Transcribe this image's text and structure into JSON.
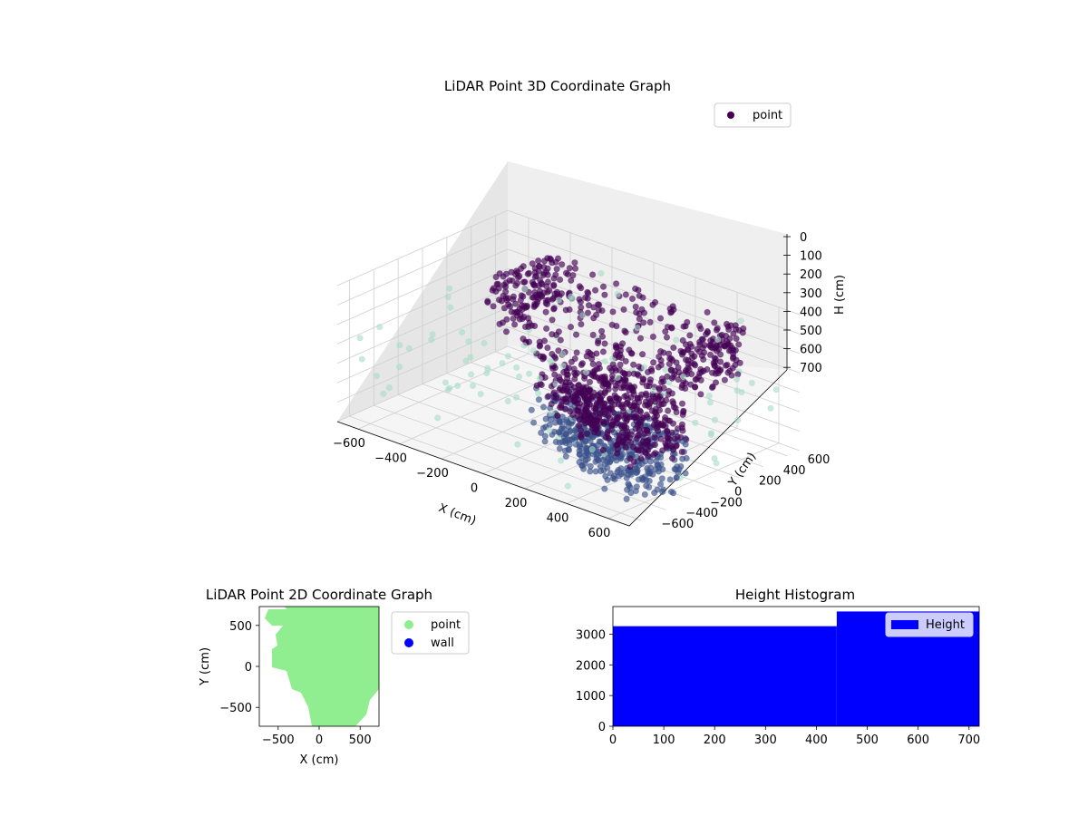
{
  "chart_data": [
    {
      "type": "scatter",
      "title": "LiDAR Point 3D Coordinate Graph",
      "xlabel": "X (cm)",
      "ylabel": "Y (cm)",
      "zlabel": "H (cm)",
      "xlim": [
        -700,
        700
      ],
      "ylim": [
        -700,
        700
      ],
      "zlim": [
        0,
        700
      ],
      "z_inverted": true,
      "x_ticks": [
        "−600",
        "−400",
        "−200",
        "0",
        "200",
        "400",
        "600"
      ],
      "y_ticks": [
        "−600",
        "−400",
        "−200",
        "0",
        "200",
        "400",
        "600"
      ],
      "z_ticks": [
        "0",
        "100",
        "200",
        "300",
        "400",
        "500",
        "600",
        "700"
      ],
      "legend": {
        "label": "point",
        "placement": "top-right"
      },
      "grid": true,
      "colormap": "viridis",
      "colors": {
        "high": "#440154",
        "mid": "#3b528b",
        "low": "#5ec962",
        "far": "#a8dcc8"
      }
    },
    {
      "type": "scatter",
      "title": "LiDAR Point 2D Coordinate Graph",
      "xlabel": "X (cm)",
      "ylabel": "Y (cm)",
      "xlim": [
        -730,
        730
      ],
      "ylim": [
        -730,
        730
      ],
      "x_ticks": [
        "−500",
        "0",
        "500"
      ],
      "y_ticks": [
        "500",
        "0",
        "−500"
      ],
      "series": [
        {
          "name": "point",
          "color": "#90ee90"
        },
        {
          "name": "wall",
          "color": "#0000ff"
        }
      ],
      "legend_placement": "outside-right"
    },
    {
      "type": "bar",
      "title": "Height Histogram",
      "xlim": [
        0,
        720
      ],
      "ylim": [
        0,
        3900
      ],
      "x_ticks": [
        "0",
        "100",
        "200",
        "300",
        "400",
        "500",
        "600",
        "700"
      ],
      "y_ticks": [
        "0",
        "1000",
        "2000",
        "3000"
      ],
      "bins": [
        {
          "from": 0,
          "to": 440,
          "count": 3260
        },
        {
          "from": 440,
          "to": 720,
          "count": 3740
        }
      ],
      "series": [
        {
          "name": "Height",
          "color": "#0000ff"
        }
      ],
      "legend_placement": "top-right"
    }
  ]
}
